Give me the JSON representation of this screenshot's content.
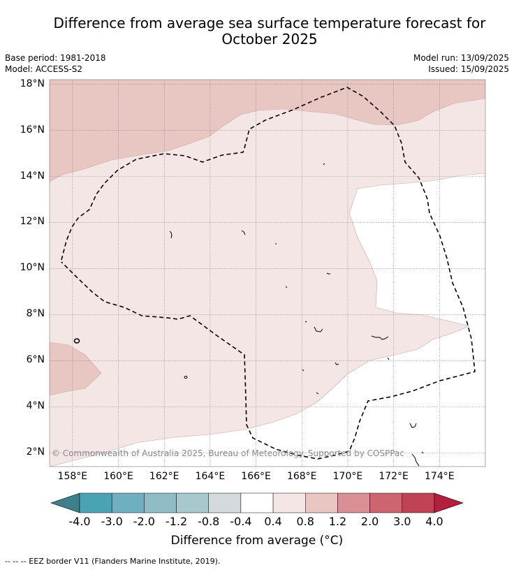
{
  "title_line1": "Difference from average sea surface temperature forecast for",
  "title_line2": "October 2025",
  "meta_left": {
    "base_period": "Base period: 1981-2018",
    "model": "Model: ACCESS-S2"
  },
  "meta_right": {
    "model_run": "Model run: 13/09/2025",
    "issued": "Issued: 15/09/2025"
  },
  "map": {
    "lon_range": [
      157,
      176
    ],
    "lat_range": [
      1.4,
      18.2
    ],
    "lat_labels": [
      "2°N",
      "4°N",
      "6°N",
      "8°N",
      "10°N",
      "12°N",
      "14°N",
      "16°N",
      "18°N"
    ],
    "lon_labels": [
      "158°E",
      "160°E",
      "162°E",
      "164°E",
      "166°E",
      "168°E",
      "170°E",
      "172°E",
      "174°E"
    ],
    "copyright": "© Commonwealth of Australia 2025, Bureau of Meteorology. Supported by COSPPac"
  },
  "colorbar": {
    "ticks": [
      "-4.0",
      "-3.0",
      "-2.0",
      "-1.2",
      "-0.8",
      "-0.4",
      "0.4",
      "0.8",
      "1.2",
      "2.0",
      "3.0",
      "4.0"
    ],
    "colors": [
      "#3f7f8c",
      "#4aa3b5",
      "#6fb0c0",
      "#8fbcc6",
      "#a7c8cc",
      "#d4d9db",
      "#ffffff",
      "#f4e6e5",
      "#e8c6c2",
      "#d98f95",
      "#cd6570",
      "#bf4352",
      "#b51e3c"
    ],
    "label": "Difference from average (°C)"
  },
  "legend_footer": "--  --  -- EEZ border V11 (Flanders Marine Institute, 2019).",
  "colors": {
    "band_0_4_0_8": "#f4e6e5",
    "band_0_8_1_2": "#e8c6c2",
    "band_neutral": "#ffffff",
    "contour": "#c8a8a6"
  }
}
